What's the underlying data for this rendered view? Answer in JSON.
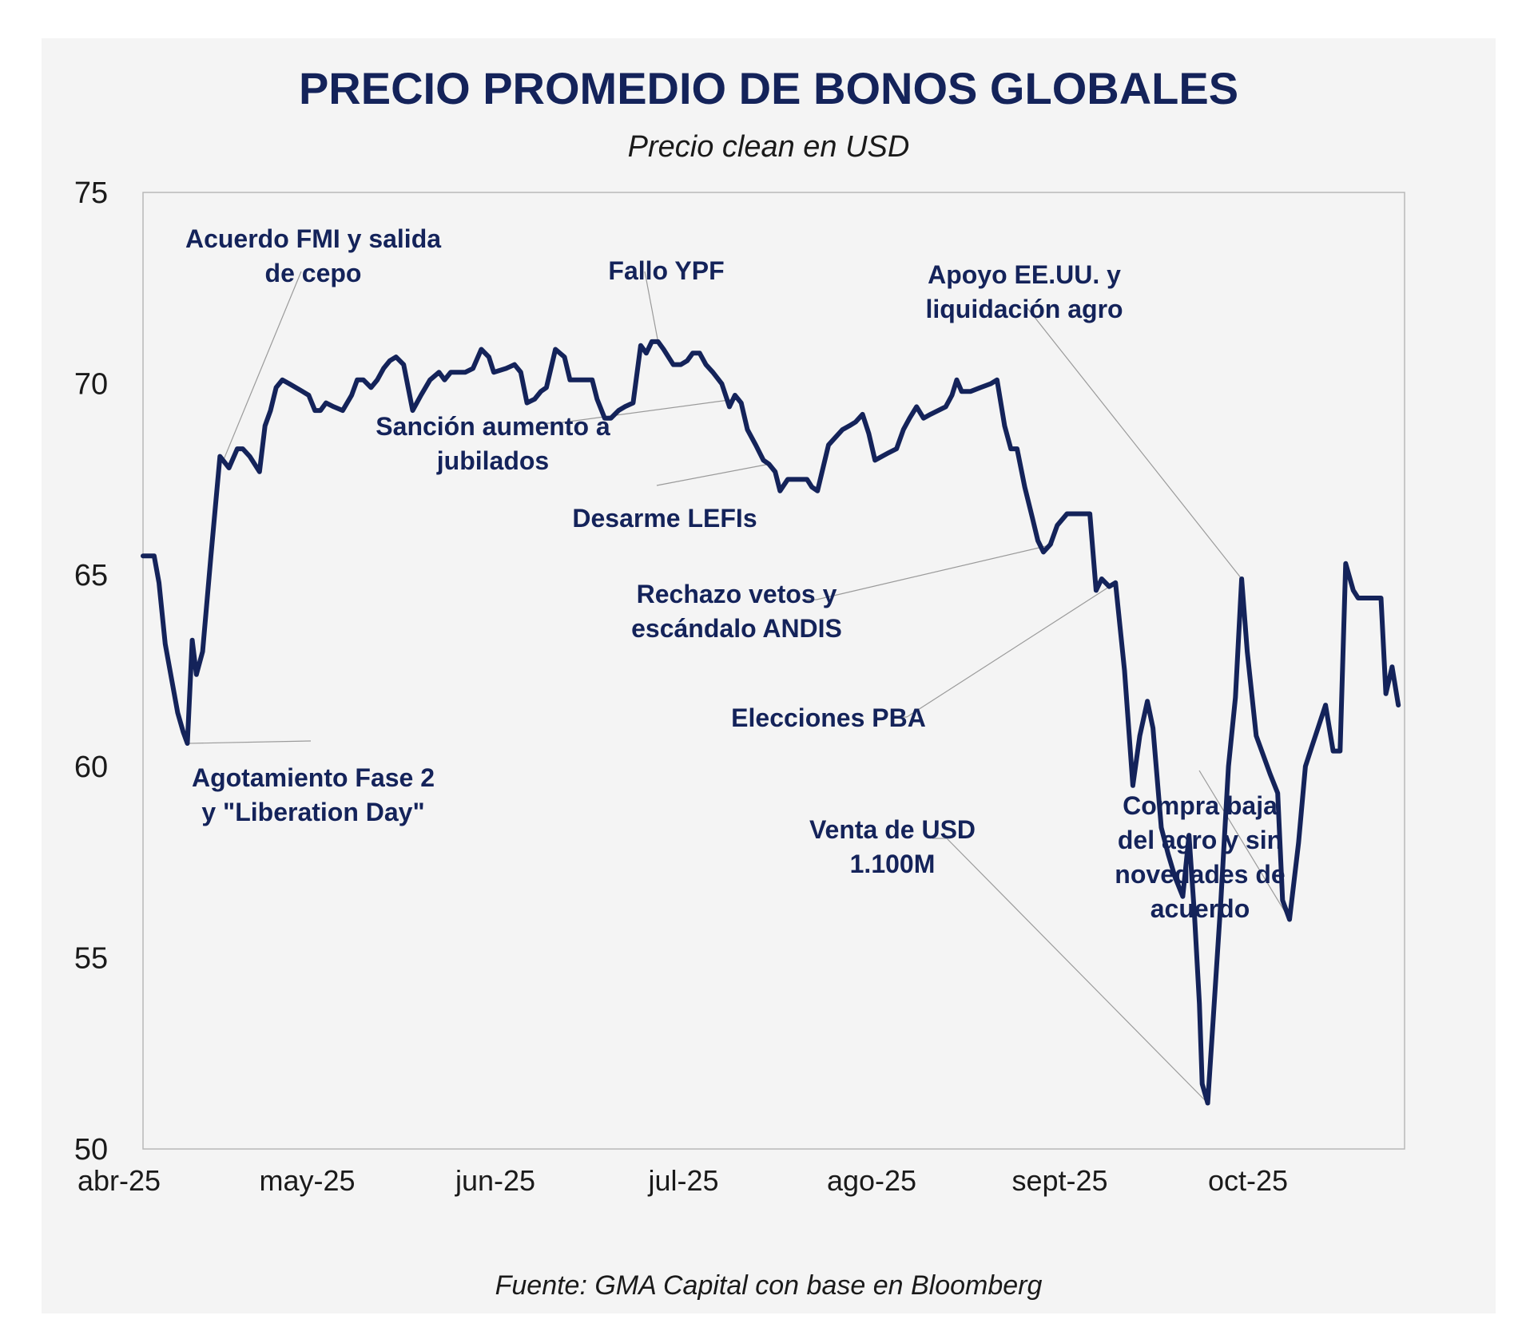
{
  "chart_data": {
    "type": "line",
    "title": "PRECIO PROMEDIO DE BONOS GLOBALES",
    "subtitle": "Precio clean en USD",
    "source": "Fuente: GMA Capital con base en Bloomberg",
    "xlabel": "",
    "ylabel": "",
    "ylim": [
      50,
      75
    ],
    "yticks": [
      "75",
      "70",
      "65",
      "60",
      "55",
      "50"
    ],
    "xticks": [
      "abr-25",
      "may-25",
      "jun-25",
      "jul-25",
      "ago-25",
      "sept-25",
      "oct-25"
    ],
    "grid": false,
    "line_color": "#14235a",
    "series": [
      {
        "name": "Precio promedio",
        "points": [
          [
            0.0,
            65.5
          ],
          [
            1.6,
            65.5
          ],
          [
            2.3,
            64.8
          ],
          [
            3.2,
            63.2
          ],
          [
            4.1,
            62.3
          ],
          [
            5.0,
            61.4
          ],
          [
            5.8,
            60.9
          ],
          [
            6.4,
            60.6
          ],
          [
            7.1,
            63.3
          ],
          [
            7.7,
            62.4
          ],
          [
            8.6,
            63.0
          ],
          [
            9.8,
            65.5
          ],
          [
            11.1,
            68.1
          ],
          [
            12.4,
            67.8
          ],
          [
            13.6,
            68.3
          ],
          [
            14.4,
            68.3
          ],
          [
            15.4,
            68.1
          ],
          [
            16.8,
            67.7
          ],
          [
            17.6,
            68.9
          ],
          [
            18.4,
            69.3
          ],
          [
            19.2,
            69.9
          ],
          [
            20.1,
            70.1
          ],
          [
            21.1,
            70.0
          ],
          [
            23.0,
            69.8
          ],
          [
            23.9,
            69.7
          ],
          [
            24.8,
            69.3
          ],
          [
            25.6,
            69.3
          ],
          [
            26.4,
            69.5
          ],
          [
            27.5,
            69.4
          ],
          [
            28.8,
            69.3
          ],
          [
            30.1,
            69.7
          ],
          [
            30.9,
            70.1
          ],
          [
            31.8,
            70.1
          ],
          [
            32.9,
            69.9
          ],
          [
            33.8,
            70.1
          ],
          [
            34.7,
            70.4
          ],
          [
            35.6,
            70.6
          ],
          [
            36.5,
            70.7
          ],
          [
            37.6,
            70.5
          ],
          [
            38.9,
            69.3
          ],
          [
            40.1,
            69.7
          ],
          [
            41.4,
            70.1
          ],
          [
            42.7,
            70.3
          ],
          [
            43.5,
            70.1
          ],
          [
            44.4,
            70.3
          ],
          [
            46.5,
            70.3
          ],
          [
            47.6,
            70.4
          ],
          [
            48.8,
            70.9
          ],
          [
            49.9,
            70.7
          ],
          [
            50.6,
            70.3
          ],
          [
            52.4,
            70.4
          ],
          [
            53.6,
            70.5
          ],
          [
            54.5,
            70.3
          ],
          [
            55.4,
            69.5
          ],
          [
            56.5,
            69.6
          ],
          [
            57.4,
            69.8
          ],
          [
            58.2,
            69.9
          ],
          [
            59.5,
            70.9
          ],
          [
            60.8,
            70.7
          ],
          [
            61.6,
            70.1
          ],
          [
            63.1,
            70.1
          ],
          [
            64.8,
            70.1
          ],
          [
            65.5,
            69.6
          ],
          [
            66.6,
            69.1
          ],
          [
            67.5,
            69.1
          ],
          [
            68.6,
            69.3
          ],
          [
            69.5,
            69.4
          ],
          [
            70.7,
            69.5
          ],
          [
            71.8,
            71.0
          ],
          [
            72.6,
            70.8
          ],
          [
            73.4,
            71.1
          ],
          [
            74.3,
            71.1
          ],
          [
            75.1,
            70.9
          ],
          [
            76.5,
            70.5
          ],
          [
            77.6,
            70.5
          ],
          [
            78.5,
            70.6
          ],
          [
            79.3,
            70.8
          ],
          [
            80.3,
            70.8
          ],
          [
            81.2,
            70.5
          ],
          [
            82.2,
            70.3
          ],
          [
            83.5,
            70.0
          ],
          [
            84.6,
            69.4
          ],
          [
            85.4,
            69.7
          ],
          [
            86.3,
            69.5
          ],
          [
            87.2,
            68.8
          ],
          [
            88.4,
            68.4
          ],
          [
            89.5,
            68.0
          ],
          [
            90.3,
            67.9
          ],
          [
            91.2,
            67.7
          ],
          [
            91.9,
            67.2
          ],
          [
            93.0,
            67.5
          ],
          [
            95.8,
            67.5
          ],
          [
            96.5,
            67.3
          ],
          [
            97.3,
            67.2
          ],
          [
            98.9,
            68.4
          ],
          [
            99.9,
            68.6
          ],
          [
            100.9,
            68.8
          ],
          [
            101.9,
            68.9
          ],
          [
            102.8,
            69.0
          ],
          [
            103.8,
            69.2
          ],
          [
            104.7,
            68.7
          ],
          [
            105.6,
            68.0
          ],
          [
            106.6,
            68.1
          ],
          [
            107.6,
            68.2
          ],
          [
            108.7,
            68.3
          ],
          [
            109.7,
            68.8
          ],
          [
            110.6,
            69.1
          ],
          [
            111.6,
            69.4
          ],
          [
            112.6,
            69.1
          ],
          [
            113.6,
            69.2
          ],
          [
            115.8,
            69.4
          ],
          [
            116.7,
            69.7
          ],
          [
            117.4,
            70.1
          ],
          [
            118.1,
            69.8
          ],
          [
            119.4,
            69.8
          ],
          [
            120.8,
            69.9
          ],
          [
            122.3,
            70.0
          ],
          [
            123.2,
            70.1
          ],
          [
            124.3,
            68.9
          ],
          [
            125.2,
            68.3
          ],
          [
            126.1,
            68.3
          ],
          [
            127.2,
            67.3
          ],
          [
            128.3,
            66.5
          ],
          [
            129.1,
            65.9
          ],
          [
            129.9,
            65.6
          ],
          [
            130.9,
            65.8
          ],
          [
            131.9,
            66.3
          ],
          [
            133.3,
            66.6
          ],
          [
            134.3,
            66.6
          ],
          [
            136.6,
            66.6
          ],
          [
            137.5,
            64.6
          ],
          [
            138.3,
            64.9
          ],
          [
            139.4,
            64.7
          ],
          [
            140.3,
            64.8
          ],
          [
            141.6,
            62.5
          ],
          [
            142.8,
            59.5
          ],
          [
            143.8,
            60.8
          ],
          [
            144.9,
            61.7
          ],
          [
            145.7,
            61.0
          ],
          [
            146.9,
            58.4
          ],
          [
            147.9,
            57.7
          ],
          [
            148.9,
            57.1
          ],
          [
            150.0,
            56.6
          ],
          [
            150.9,
            58.2
          ],
          [
            151.7,
            56.1
          ],
          [
            152.4,
            53.8
          ],
          [
            152.8,
            51.7
          ],
          [
            153.6,
            51.2
          ],
          [
            154.4,
            53.4
          ],
          [
            155.5,
            56.5
          ],
          [
            156.6,
            60.0
          ],
          [
            157.6,
            61.8
          ],
          [
            158.5,
            64.9
          ],
          [
            159.3,
            63.0
          ],
          [
            160.6,
            60.8
          ],
          [
            161.6,
            60.3
          ],
          [
            162.6,
            59.8
          ],
          [
            163.7,
            59.3
          ],
          [
            164.4,
            56.5
          ],
          [
            165.4,
            56.0
          ],
          [
            166.7,
            58.0
          ],
          [
            167.7,
            60.0
          ],
          [
            168.6,
            60.5
          ],
          [
            169.5,
            61.0
          ],
          [
            170.6,
            61.6
          ],
          [
            171.7,
            60.4
          ],
          [
            172.7,
            60.4
          ],
          [
            173.5,
            65.3
          ],
          [
            174.6,
            64.6
          ],
          [
            175.3,
            64.4
          ],
          [
            177.9,
            64.4
          ],
          [
            178.6,
            64.4
          ],
          [
            179.3,
            61.9
          ],
          [
            180.2,
            62.6
          ],
          [
            181.1,
            61.6
          ]
        ]
      }
    ],
    "annotations": [
      {
        "lines": [
          "Acuerdo FMI y salida",
          "de cepo"
        ],
        "point": [
          11.6,
          68.0
        ]
      },
      {
        "lines": [
          "Agotamiento Fase 2",
          "y \"Liberation Day\""
        ],
        "point": [
          6.4,
          60.6
        ]
      },
      {
        "lines": [
          "Sanción aumento a",
          "jubilados"
        ],
        "point": [
          85.6,
          69.6
        ]
      },
      {
        "lines": [
          "Fallo YPF"
        ],
        "point": [
          74.3,
          71.1
        ]
      },
      {
        "lines": [
          "Desarme LEFIs"
        ],
        "point": [
          90.3,
          67.9
        ]
      },
      {
        "lines": [
          "Rechazo vetos y",
          "escándalo ANDIS"
        ],
        "point": [
          131.3,
          65.8
        ]
      },
      {
        "lines": [
          "Elecciones PBA"
        ],
        "point": [
          140.3,
          64.8
        ]
      },
      {
        "lines": [
          "Apoyo EE.UU. y",
          "liquidación agro"
        ],
        "point": [
          158.5,
          64.9
        ]
      },
      {
        "lines": [
          "Venta de USD",
          "1.100M"
        ],
        "point": [
          153.6,
          51.2
        ]
      },
      {
        "lines": [
          "Compra baja",
          "del agro y sin",
          "novedades de",
          "acuerdo"
        ],
        "point": [
          165.4,
          56.0
        ]
      }
    ]
  }
}
